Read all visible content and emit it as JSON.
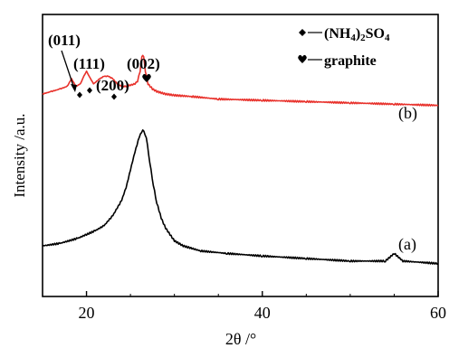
{
  "chart_data": {
    "type": "line",
    "xlabel": "2θ /°",
    "ylabel": "Intensity /a.u.",
    "xlim": [
      15,
      60
    ],
    "xticks": [
      20,
      40,
      60
    ],
    "yticks": [],
    "grid": false,
    "legend_position": "top-right",
    "legend": [
      {
        "marker": "diamond",
        "label": "(NH4)2SO4"
      },
      {
        "marker": "heart",
        "label": "graphite"
      }
    ],
    "series": [
      {
        "label": "(a)",
        "color": "#000000",
        "x": [
          15,
          17,
          19,
          21,
          22,
          23,
          24,
          24.5,
          25,
          25.5,
          26,
          26.4,
          26.8,
          27.2,
          27.6,
          28,
          28.5,
          29,
          30,
          31,
          33,
          36,
          40,
          45,
          50,
          54,
          55,
          56,
          60
        ],
        "y": [
          0.1,
          0.11,
          0.13,
          0.16,
          0.18,
          0.22,
          0.28,
          0.33,
          0.4,
          0.47,
          0.53,
          0.56,
          0.53,
          0.43,
          0.34,
          0.27,
          0.21,
          0.17,
          0.12,
          0.1,
          0.08,
          0.07,
          0.06,
          0.05,
          0.04,
          0.04,
          0.07,
          0.04,
          0.03
        ]
      },
      {
        "label": "(b)",
        "color": "#e8312b",
        "x": [
          15,
          16,
          17,
          17.8,
          18.3,
          18.8,
          19.3,
          19.7,
          20.0,
          20.3,
          20.8,
          21.5,
          22.0,
          22.5,
          23.0,
          23.5,
          24.0,
          24.5,
          25.0,
          25.5,
          25.8,
          26.1,
          26.3,
          26.5,
          26.7,
          27.0,
          27.5,
          28,
          29,
          30,
          32,
          35,
          40,
          45,
          50,
          55,
          60
        ],
        "y": [
          0.7,
          0.71,
          0.72,
          0.73,
          0.76,
          0.73,
          0.74,
          0.77,
          0.79,
          0.77,
          0.74,
          0.76,
          0.77,
          0.77,
          0.76,
          0.74,
          0.73,
          0.73,
          0.735,
          0.74,
          0.75,
          0.79,
          0.85,
          0.85,
          0.79,
          0.74,
          0.72,
          0.71,
          0.7,
          0.695,
          0.69,
          0.68,
          0.675,
          0.67,
          0.665,
          0.66,
          0.655
        ]
      }
    ],
    "annotations": [
      {
        "text": "(011)",
        "x": 18.3,
        "marker": "diamond"
      },
      {
        "text": "(111)",
        "x": 20.0,
        "marker": "diamond"
      },
      {
        "text": "(200)",
        "x": 22.5,
        "marker": "diamond"
      },
      {
        "text": "(002)",
        "x": 26.4,
        "marker": "heart"
      }
    ]
  }
}
